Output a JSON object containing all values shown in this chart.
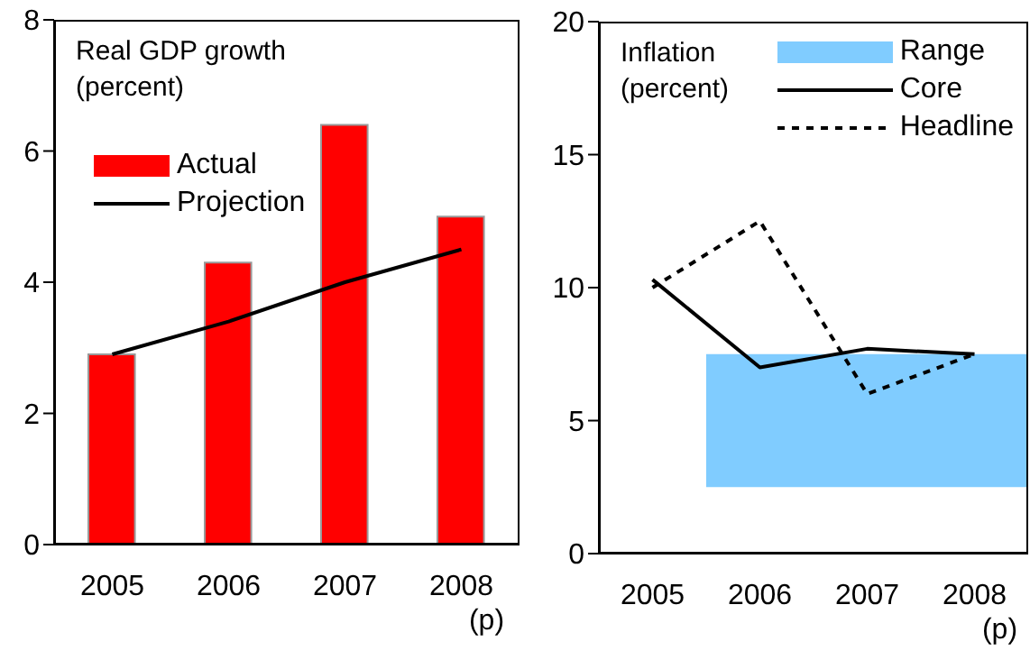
{
  "chart_data": [
    {
      "type": "bar",
      "title": "Real GDP growth\n(percent)",
      "categories": [
        "2005",
        "2006",
        "2007",
        "2008\n(p)"
      ],
      "series": [
        {
          "name": "Actual",
          "color": "#ff0000",
          "values": [
            2.9,
            4.3,
            6.4,
            5.0
          ]
        },
        {
          "name": "Projection",
          "type": "line",
          "color": "#000000",
          "values": [
            2.9,
            3.4,
            4.0,
            4.5
          ]
        }
      ],
      "ylim": [
        0,
        8
      ],
      "yticks": [
        0,
        2,
        4,
        6,
        8
      ],
      "legend": "top left"
    },
    {
      "type": "line",
      "title": "Inflation\n(percent)",
      "categories": [
        "2005",
        "2006",
        "2007",
        "2008\n(p)"
      ],
      "series": [
        {
          "name": "Core",
          "color": "#000000",
          "values": [
            10.3,
            7.0,
            7.7,
            7.5
          ],
          "line_style": "solid"
        },
        {
          "name": "Headline",
          "color": "#000000",
          "values": [
            10.0,
            12.5,
            6.0,
            7.5
          ],
          "line_style": "dashed"
        }
      ],
      "bands": [
        {
          "axis": "y",
          "from": 2.5,
          "to": 7.5,
          "label": "Range",
          "color": "#80ccff"
        }
      ],
      "ylim": [
        0,
        20
      ],
      "yticks": [
        0,
        5,
        10,
        15,
        20
      ],
      "legend": "top right"
    }
  ]
}
